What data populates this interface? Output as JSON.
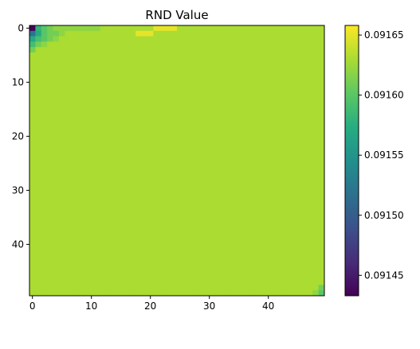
{
  "chart_data": {
    "type": "heatmap",
    "title": "RND Value",
    "xlabel": "",
    "ylabel": "",
    "rows": 50,
    "cols": 50,
    "xticks": [
      0,
      10,
      20,
      30,
      40
    ],
    "yticks": [
      0,
      10,
      20,
      30,
      40
    ],
    "y_axis_origin": "top",
    "colormap": "viridis",
    "vmin": 0.091433,
    "vmax": 0.091658,
    "background_value": 0.09163,
    "cells": [
      {
        "row": 0,
        "col": 0,
        "value": 0.091435
      },
      {
        "row": 0,
        "col": 1,
        "value": 0.09158
      },
      {
        "row": 0,
        "col": 2,
        "value": 0.0916
      },
      {
        "row": 0,
        "col": 3,
        "value": 0.09161
      },
      {
        "row": 0,
        "col": 4,
        "value": 0.09162
      },
      {
        "row": 0,
        "col": 5,
        "value": 0.09162
      },
      {
        "row": 0,
        "col": 6,
        "value": 0.09162
      },
      {
        "row": 0,
        "col": 7,
        "value": 0.09162
      },
      {
        "row": 0,
        "col": 8,
        "value": 0.09162
      },
      {
        "row": 0,
        "col": 9,
        "value": 0.09162
      },
      {
        "row": 0,
        "col": 10,
        "value": 0.09162
      },
      {
        "row": 0,
        "col": 11,
        "value": 0.09162
      },
      {
        "row": 0,
        "col": 21,
        "value": 0.09165
      },
      {
        "row": 0,
        "col": 22,
        "value": 0.09165
      },
      {
        "row": 0,
        "col": 23,
        "value": 0.09165
      },
      {
        "row": 0,
        "col": 24,
        "value": 0.09165
      },
      {
        "row": 1,
        "col": 0,
        "value": 0.09152
      },
      {
        "row": 1,
        "col": 1,
        "value": 0.09157
      },
      {
        "row": 1,
        "col": 2,
        "value": 0.0916
      },
      {
        "row": 1,
        "col": 3,
        "value": 0.09161
      },
      {
        "row": 1,
        "col": 4,
        "value": 0.09161
      },
      {
        "row": 1,
        "col": 5,
        "value": 0.09162
      },
      {
        "row": 1,
        "col": 18,
        "value": 0.09165
      },
      {
        "row": 1,
        "col": 19,
        "value": 0.09165
      },
      {
        "row": 1,
        "col": 20,
        "value": 0.09165
      },
      {
        "row": 2,
        "col": 0,
        "value": 0.09157
      },
      {
        "row": 2,
        "col": 1,
        "value": 0.09159
      },
      {
        "row": 2,
        "col": 2,
        "value": 0.0916
      },
      {
        "row": 2,
        "col": 3,
        "value": 0.09161
      },
      {
        "row": 2,
        "col": 4,
        "value": 0.09162
      },
      {
        "row": 3,
        "col": 0,
        "value": 0.09159
      },
      {
        "row": 3,
        "col": 1,
        "value": 0.09161
      },
      {
        "row": 3,
        "col": 2,
        "value": 0.09162
      },
      {
        "row": 4,
        "col": 0,
        "value": 0.09161
      },
      {
        "row": 48,
        "col": 49,
        "value": 0.09161
      },
      {
        "row": 49,
        "col": 48,
        "value": 0.09162
      },
      {
        "row": 49,
        "col": 49,
        "value": 0.0916
      }
    ],
    "colorbar": {
      "ticks": [
        0.09145,
        0.0915,
        0.09155,
        0.0916,
        0.09165
      ],
      "tick_labels": [
        "0.09145",
        "0.09150",
        "0.09155",
        "0.09160",
        "0.09165"
      ]
    }
  }
}
